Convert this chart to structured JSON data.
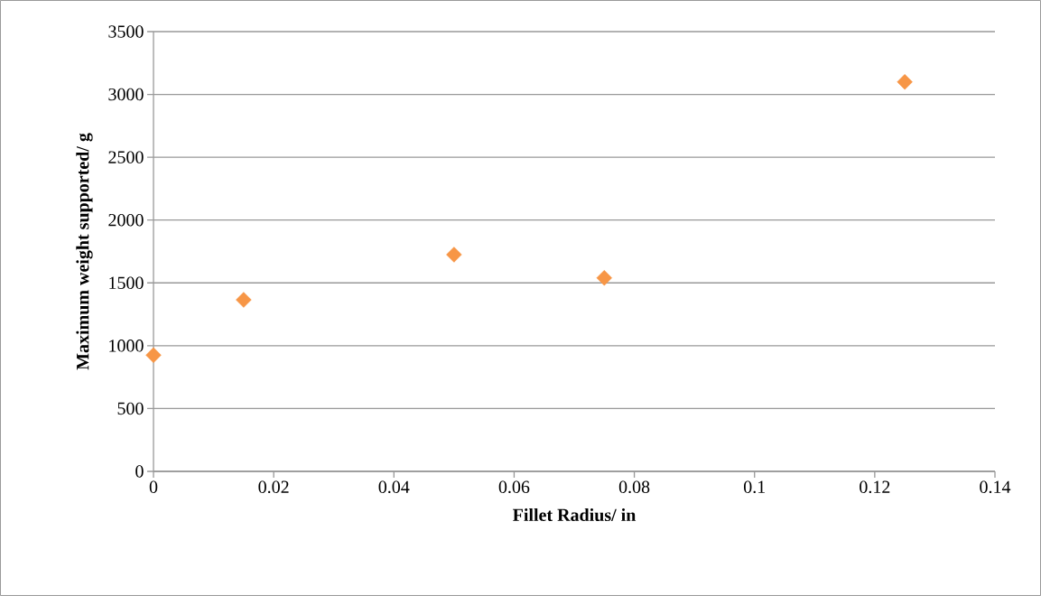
{
  "chart_data": {
    "type": "scatter",
    "xlabel": "Fillet Radius/ in",
    "ylabel": "Maximum weight supported/ g",
    "x": [
      0,
      0.015,
      0.05,
      0.075,
      0.125
    ],
    "values": [
      925,
      1365,
      1725,
      1540,
      3100
    ],
    "color": "#f79646",
    "marker": "diamond",
    "xlim": [
      0,
      0.14
    ],
    "xticks": [
      0,
      0.02,
      0.04,
      0.06,
      0.08,
      0.1,
      0.12,
      0.14
    ],
    "ylim": [
      0,
      3500
    ],
    "yticks": [
      0,
      500,
      1000,
      1500,
      2000,
      2500,
      3000,
      3500
    ],
    "grid": "y"
  }
}
